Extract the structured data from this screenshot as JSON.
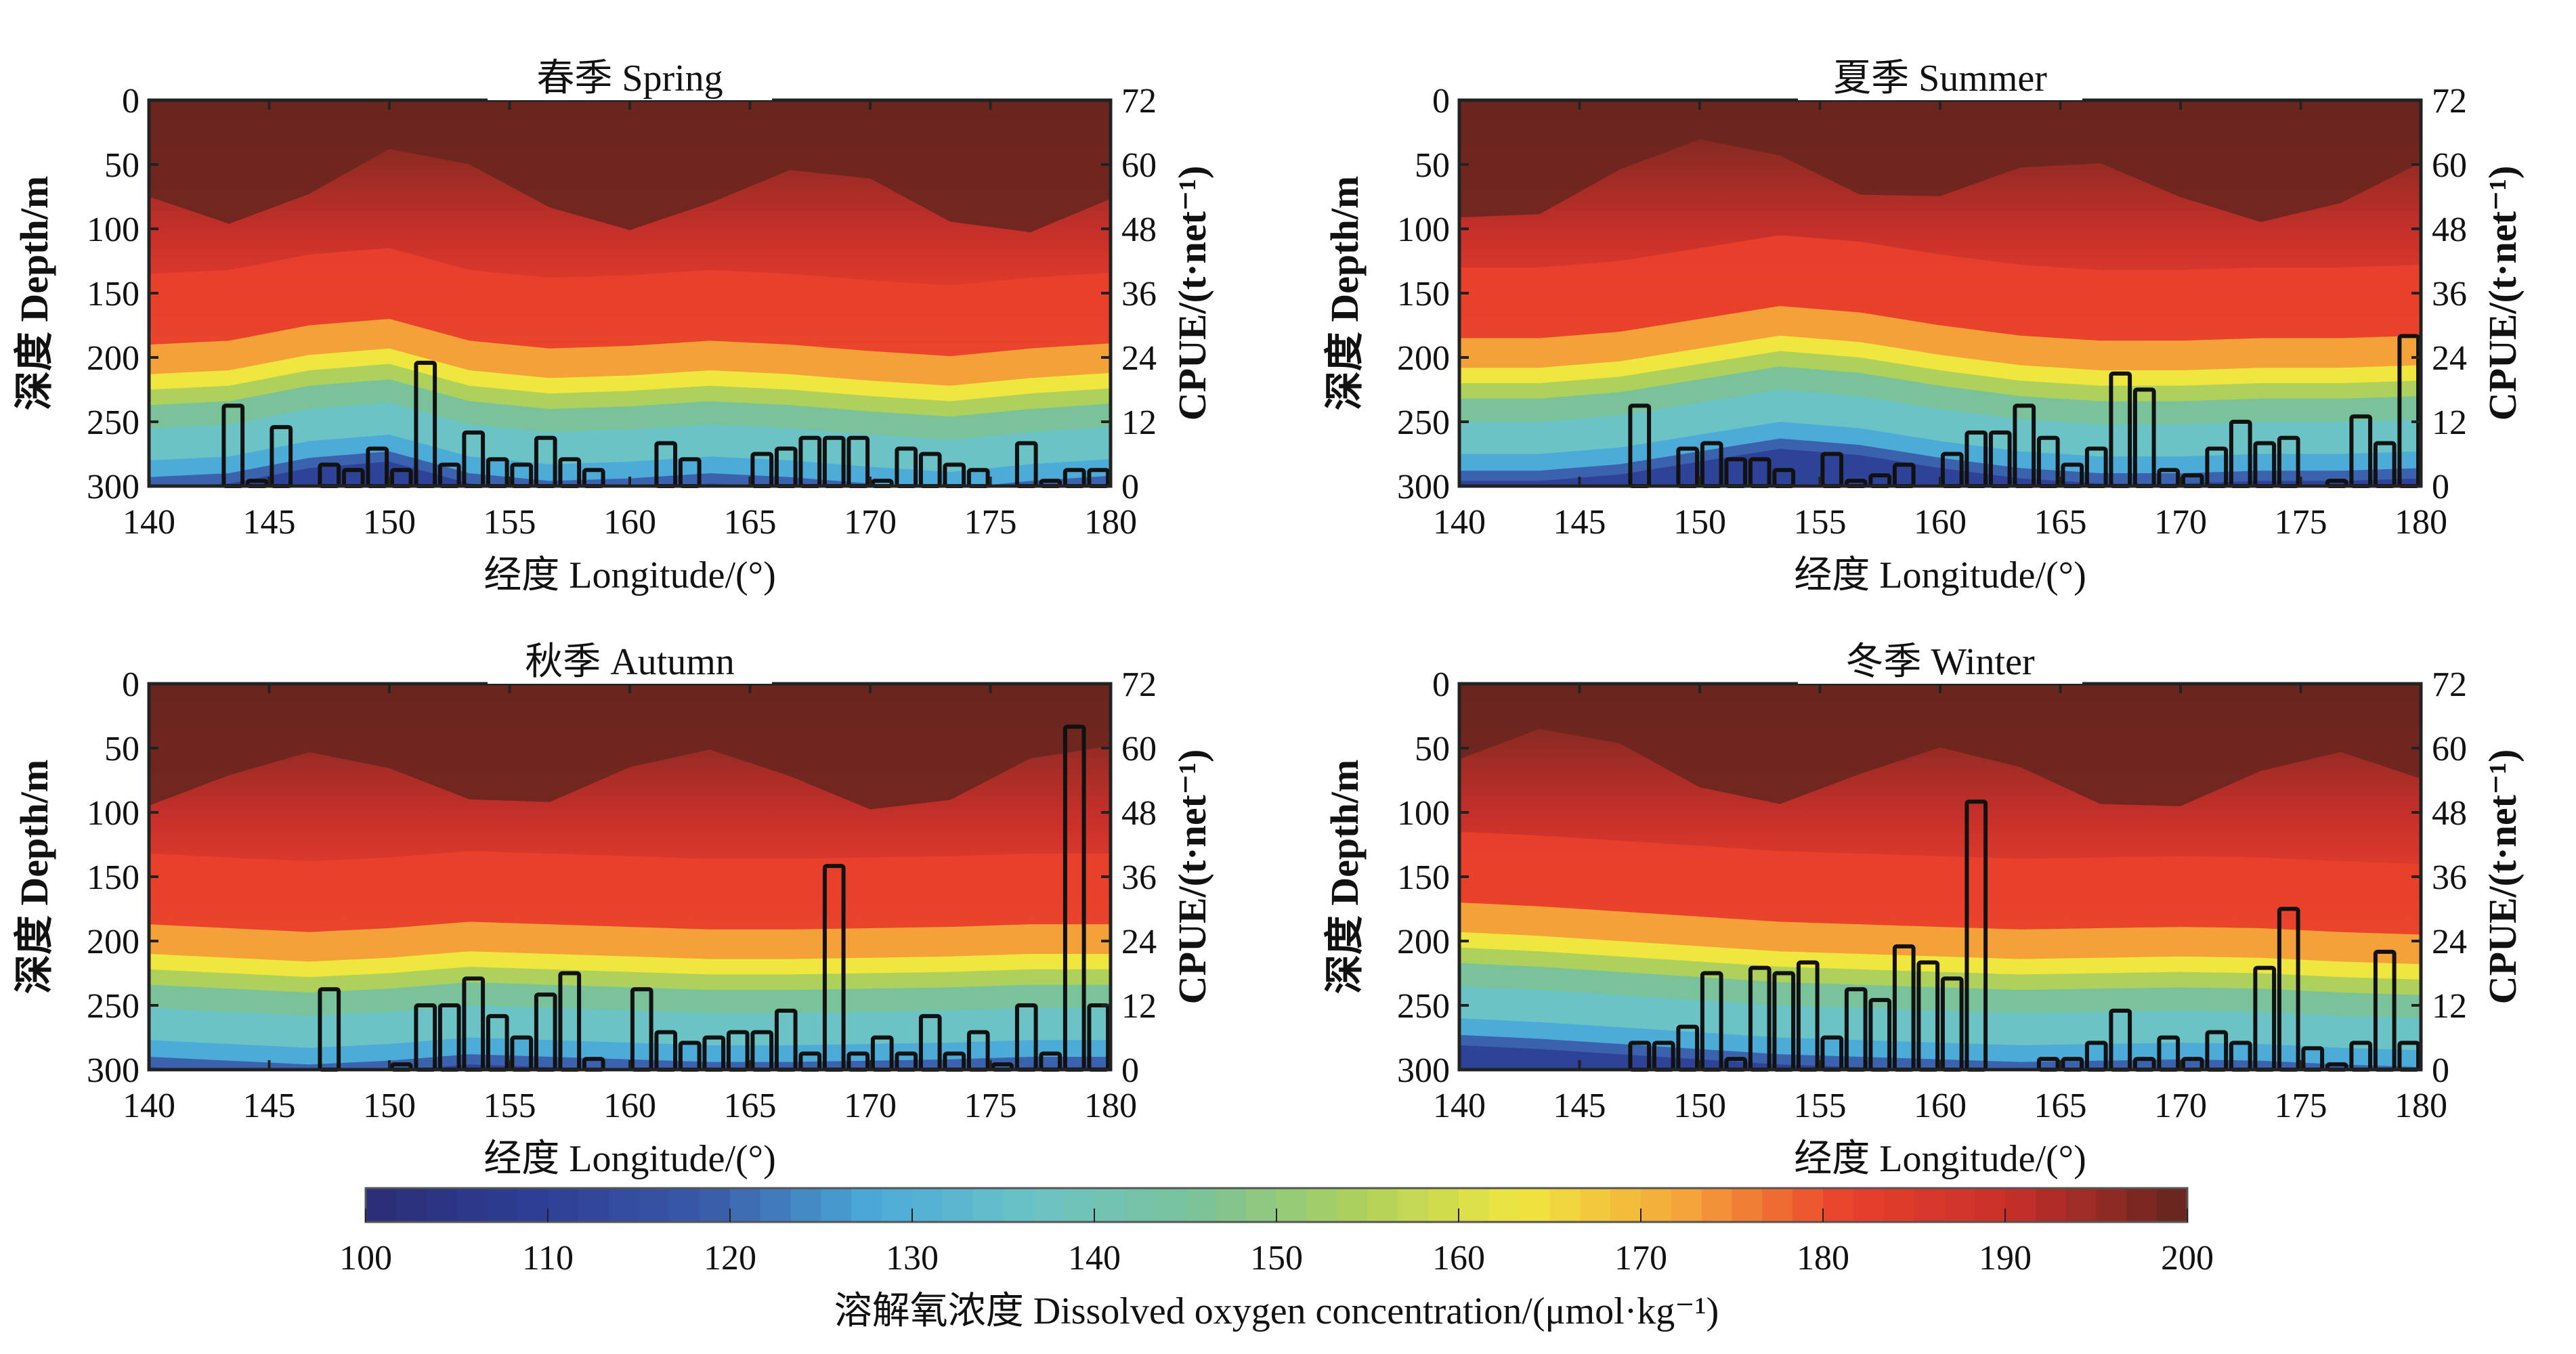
{
  "chart_data": [
    {
      "type": "heatmap",
      "title": "春季 Spring",
      "xlabel": "经度  Longitude/(°)",
      "ylabel": "深度 Depth/m",
      "y2label": "CPUE/(t·net⁻¹)",
      "xlim": [
        140,
        180
      ],
      "ylim": [
        0,
        300
      ],
      "y2lim": [
        0,
        72
      ],
      "xticks": [
        140,
        145,
        150,
        155,
        160,
        165,
        170,
        175,
        180
      ],
      "yticks": [
        0,
        50,
        100,
        150,
        200,
        250,
        300
      ],
      "y2ticks": [
        0,
        12,
        24,
        36,
        48,
        60,
        72
      ],
      "thermocline_depth": [
        225,
        222,
        210,
        205,
        222,
        228,
        226,
        222,
        225,
        230,
        234,
        228,
        224
      ],
      "bars": {
        "x": [
          143,
          144,
          145,
          147,
          148,
          149,
          150,
          151,
          152,
          153,
          154,
          155,
          156,
          157,
          158,
          161,
          162,
          165,
          166,
          167,
          168,
          169,
          170,
          171,
          172,
          173,
          174,
          176,
          177,
          178,
          179
        ],
        "values": [
          15,
          1,
          11,
          4,
          3,
          7,
          3,
          23,
          4,
          10,
          5,
          4,
          9,
          5,
          3,
          8,
          5,
          6,
          7,
          9,
          9,
          9,
          1,
          7,
          6,
          4,
          3,
          8,
          1,
          3,
          3
        ]
      }
    },
    {
      "type": "heatmap",
      "title": "夏季 Summer",
      "xlabel": "经度  Longitude/(°)",
      "ylabel": "深度 Depth/m",
      "y2label": "CPUE/(t·net⁻¹)",
      "xlim": [
        140,
        180
      ],
      "ylim": [
        0,
        300
      ],
      "y2lim": [
        0,
        72
      ],
      "xticks": [
        140,
        145,
        150,
        155,
        160,
        165,
        170,
        175,
        180
      ],
      "yticks": [
        0,
        50,
        100,
        150,
        200,
        250,
        300
      ],
      "y2ticks": [
        0,
        12,
        24,
        36,
        48,
        60,
        72
      ],
      "thermocline_depth": [
        220,
        220,
        215,
        205,
        195,
        200,
        210,
        218,
        222,
        222,
        220,
        220,
        218
      ],
      "bars": {
        "x": [
          147,
          149,
          150,
          151,
          152,
          153,
          155,
          156,
          157,
          158,
          160,
          161,
          162,
          163,
          164,
          165,
          166,
          167,
          168,
          169,
          170,
          171,
          172,
          173,
          174,
          176,
          177,
          178,
          179
        ],
        "values": [
          15,
          7,
          8,
          5,
          5,
          3,
          6,
          1,
          2,
          4,
          6,
          10,
          10,
          15,
          9,
          4,
          7,
          21,
          18,
          3,
          2,
          7,
          12,
          8,
          9,
          1,
          13,
          8,
          28
        ]
      }
    },
    {
      "type": "heatmap",
      "title": "秋季 Autumn",
      "xlabel": "经度  Longitude/(°)",
      "ylabel": "深度 Depth/m",
      "y2label": "CPUE/(t·net⁻¹)",
      "xlim": [
        140,
        180
      ],
      "ylim": [
        0,
        300
      ],
      "y2lim": [
        0,
        72
      ],
      "xticks": [
        140,
        145,
        150,
        155,
        160,
        165,
        170,
        175,
        180
      ],
      "yticks": [
        0,
        50,
        100,
        150,
        200,
        250,
        300
      ],
      "y2ticks": [
        0,
        12,
        24,
        36,
        48,
        60,
        72
      ],
      "thermocline_depth": [
        222,
        225,
        228,
        225,
        220,
        222,
        224,
        226,
        226,
        225,
        224,
        222,
        222
      ],
      "bars": {
        "x": [
          147,
          150,
          151,
          152,
          153,
          154,
          155,
          156,
          157,
          158,
          160,
          161,
          162,
          163,
          164,
          165,
          166,
          167,
          168,
          169,
          170,
          171,
          172,
          173,
          174,
          175,
          176,
          177,
          178,
          179
        ],
        "values": [
          15,
          1,
          12,
          12,
          17,
          10,
          6,
          14,
          18,
          2,
          15,
          7,
          5,
          6,
          7,
          7,
          11,
          3,
          38,
          3,
          6,
          3,
          10,
          3,
          7,
          1,
          12,
          3,
          64,
          12
        ]
      }
    },
    {
      "type": "heatmap",
      "title": "冬季 Winter",
      "xlabel": "经度  Longitude/(°)",
      "ylabel": "深度 Depth/m",
      "y2label": "CPUE/(t·net⁻¹)",
      "xlim": [
        140,
        180
      ],
      "ylim": [
        0,
        300
      ],
      "y2lim": [
        0,
        72
      ],
      "xticks": [
        140,
        145,
        150,
        155,
        160,
        165,
        170,
        175,
        180
      ],
      "yticks": [
        0,
        50,
        100,
        150,
        200,
        250,
        300
      ],
      "y2ticks": [
        0,
        12,
        24,
        36,
        48,
        60,
        72
      ],
      "thermocline_depth": [
        205,
        208,
        212,
        216,
        220,
        222,
        224,
        226,
        225,
        224,
        225,
        228,
        230
      ],
      "bars": {
        "x": [
          147,
          148,
          149,
          150,
          151,
          152,
          153,
          154,
          155,
          156,
          157,
          158,
          159,
          160,
          161,
          164,
          165,
          166,
          167,
          168,
          169,
          170,
          171,
          172,
          173,
          174,
          175,
          176,
          177,
          178,
          179
        ],
        "values": [
          5,
          5,
          8,
          18,
          2,
          19,
          18,
          20,
          6,
          15,
          13,
          23,
          20,
          17,
          50,
          2,
          2,
          5,
          11,
          2,
          6,
          2,
          7,
          5,
          19,
          30,
          4,
          1,
          5,
          22,
          5
        ]
      }
    }
  ],
  "colorbar": {
    "label": "溶解氧浓度 Dissolved oxygen concentration/(μmol·kg⁻¹)",
    "range": [
      100,
      200
    ],
    "ticks": [
      100,
      110,
      120,
      130,
      140,
      150,
      160,
      170,
      180,
      190,
      200
    ],
    "colors": [
      "#2b2f78",
      "#2e3f96",
      "#3a5aa8",
      "#4aa8d8",
      "#6cc3c6",
      "#79c29a",
      "#aed15c",
      "#f0e640",
      "#f4a63a",
      "#e9402c",
      "#c8302a",
      "#6a261f"
    ]
  }
}
